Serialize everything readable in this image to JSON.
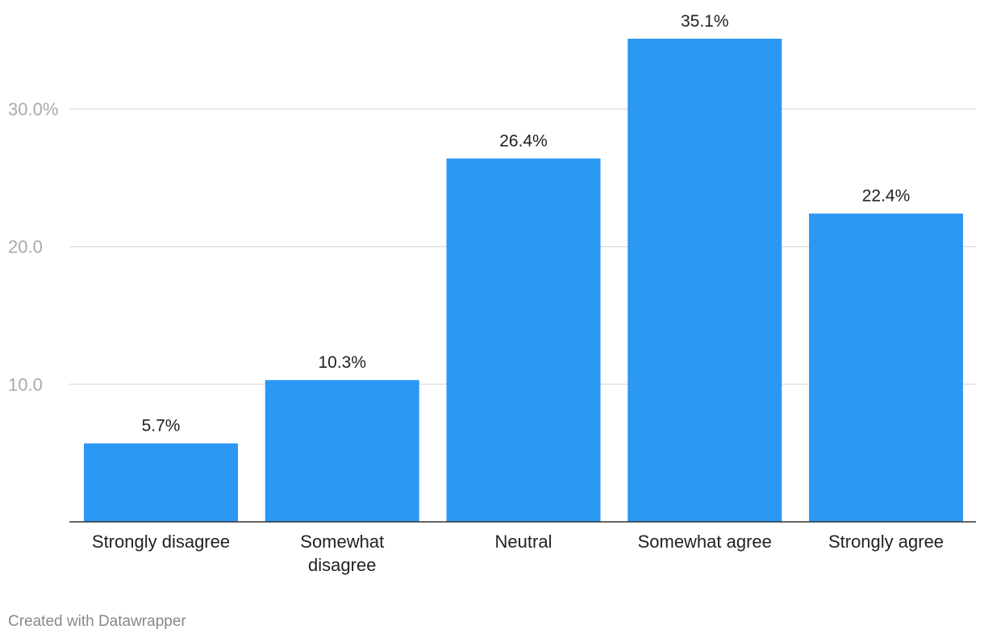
{
  "chart_data": {
    "type": "bar",
    "categories": [
      "Strongly disagree",
      "Somewhat disagree",
      "Neutral",
      "Somewhat agree",
      "Strongly agree"
    ],
    "category_lines": [
      [
        "Strongly disagree"
      ],
      [
        "Somewhat",
        "disagree"
      ],
      [
        "Neutral"
      ],
      [
        "Somewhat agree"
      ],
      [
        "Strongly agree"
      ]
    ],
    "values": [
      5.7,
      10.3,
      26.4,
      35.1,
      22.4
    ],
    "value_labels": [
      "5.7%",
      "10.3%",
      "26.4%",
      "35.1%",
      "22.4%"
    ],
    "yticks": [
      10,
      20,
      30
    ],
    "ytick_labels": [
      "10.0",
      "20.0",
      "30.0%"
    ],
    "ylim": [
      0,
      35.1
    ],
    "grid": true,
    "bar_color": "#2b98f5",
    "gridline_color": "#e0e0e0",
    "baseline_color": "#333333",
    "title": "",
    "xlabel": "",
    "ylabel": ""
  },
  "footer": {
    "credit": "Created with Datawrapper"
  }
}
